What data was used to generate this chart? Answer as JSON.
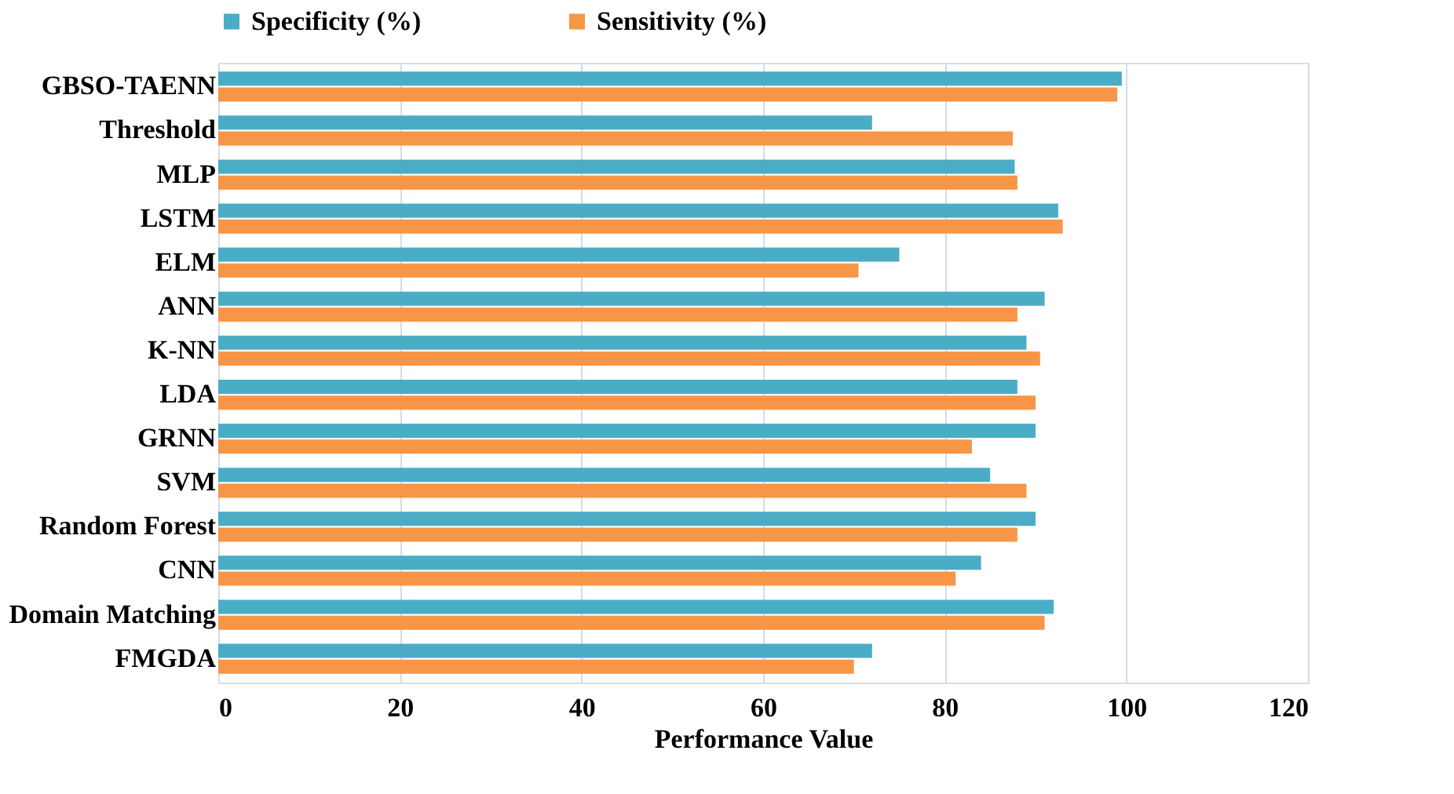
{
  "chart_data": {
    "type": "bar",
    "orientation": "horizontal",
    "xlabel": "Performance Value",
    "categories": [
      "GBSO-TAENN",
      "Threshold",
      "MLP",
      "LSTM",
      "ELM",
      "ANN",
      "K-NN",
      "LDA",
      "GRNN",
      "SVM",
      "Random Forest",
      "CNN",
      "Domain Matching",
      "FMGDA"
    ],
    "series": [
      {
        "name": "Specificity (%)",
        "color": "#4bacc6",
        "values": [
          99.5,
          72,
          87.7,
          92.5,
          75,
          91,
          89,
          88,
          90,
          85,
          90,
          84,
          92,
          72
        ]
      },
      {
        "name": "Sensitivity (%)",
        "color": "#f79646",
        "values": [
          99,
          87.5,
          88,
          93,
          70.5,
          88,
          90.5,
          90,
          83,
          89,
          88,
          81.2,
          91,
          70
        ]
      }
    ],
    "xlim": [
      0,
      120
    ],
    "xticks": [
      0,
      20,
      40,
      60,
      80,
      100,
      120
    ],
    "grid": "x",
    "legend": "top"
  }
}
